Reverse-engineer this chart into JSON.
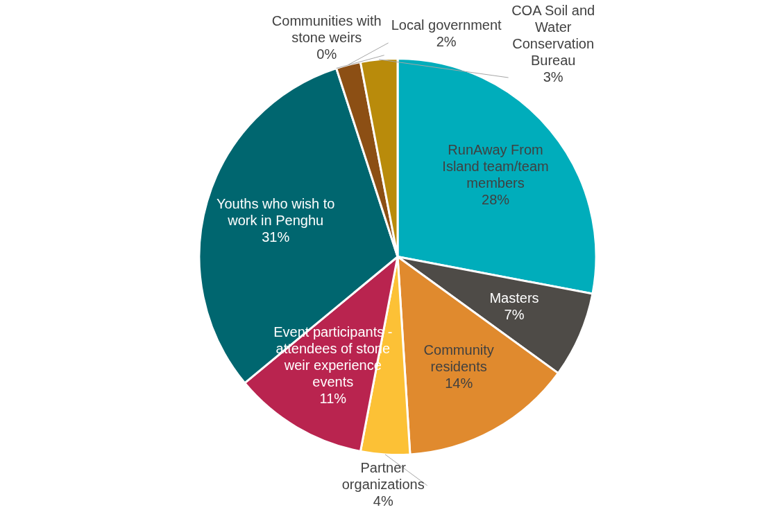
{
  "chart_data": {
    "type": "pie",
    "categories": [
      "RunAway From Island team/team members",
      "Masters",
      "Community residents",
      "Partner organizations",
      "Event participants - attendees of stone weir experience events",
      "Youths who wish to work in Penghu",
      "Communities with stone weirs",
      "Local government",
      "COA Soil and Water Conservation Bureau"
    ],
    "values": [
      28,
      7,
      14,
      4,
      11,
      31,
      0,
      2,
      3
    ],
    "value_labels": [
      "28%",
      "7%",
      "14%",
      "4%",
      "11%",
      "31%",
      "0%",
      "2%",
      "3%"
    ],
    "colors": [
      "#00adbb",
      "#4e4b47",
      "#e08a2e",
      "#fcc136",
      "#b9244f",
      "#00666f",
      "#6c8f3a",
      "#8c4f14",
      "#b98b0b"
    ]
  }
}
